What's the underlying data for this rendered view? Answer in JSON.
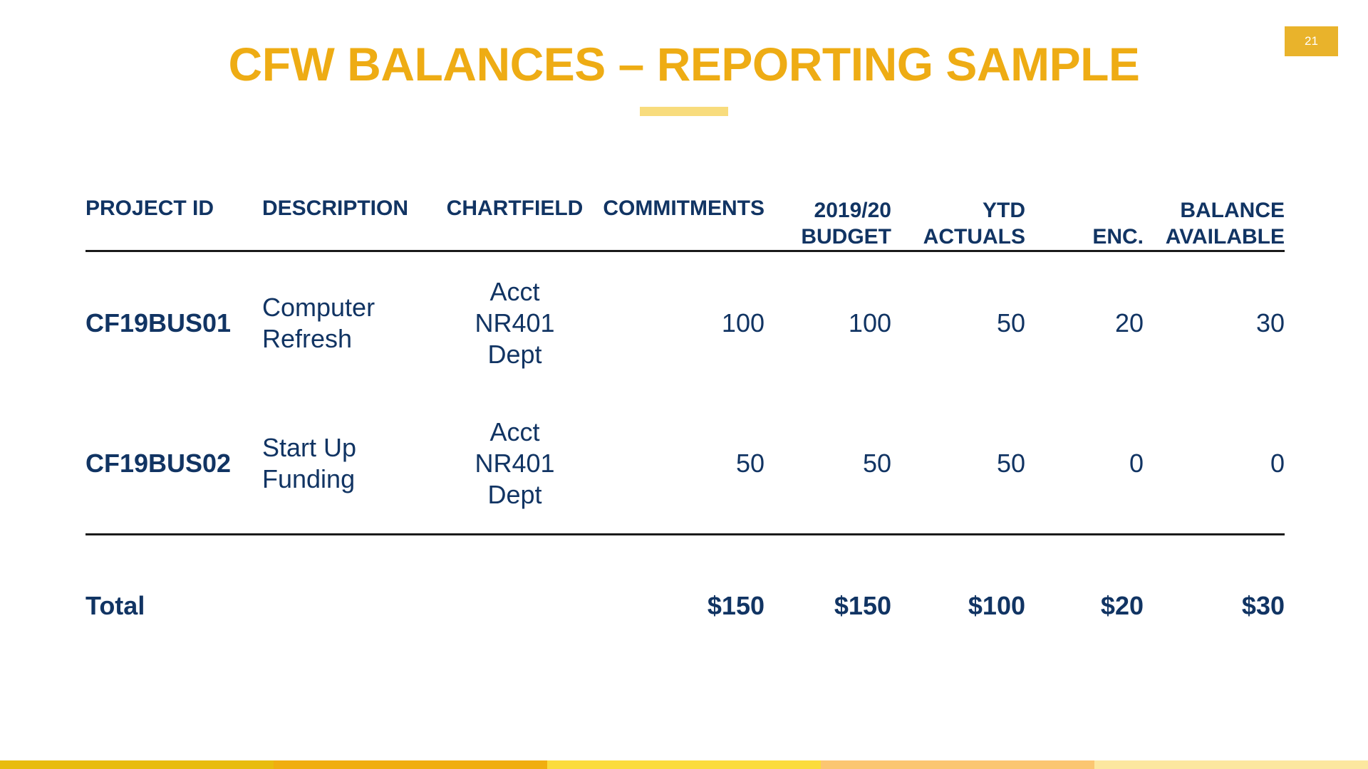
{
  "page": {
    "number": "21"
  },
  "title": {
    "text": "CFW BALANCES – REPORTING SAMPLE"
  },
  "table": {
    "header": {
      "project_id": "PROJECT ID",
      "description": "DESCRIPTION",
      "chartfield": "CHARTFIELD",
      "commitments": "COMMITMENTS",
      "budget": [
        "2019/20",
        "BUDGET"
      ],
      "ytd": [
        "YTD",
        "ACTUALS"
      ],
      "enc": "ENC.",
      "balance": [
        "BALANCE",
        "AVAILABLE"
      ]
    },
    "rows": [
      {
        "project_id": "CF19BUS01",
        "description": [
          "Computer",
          "Refresh"
        ],
        "chartfield": [
          "Acct",
          "NR401",
          "Dept"
        ],
        "commitments": "100",
        "budget": "100",
        "ytd": "50",
        "enc": "20",
        "available": "30"
      },
      {
        "project_id": "CF19BUS02",
        "description": [
          "Start Up",
          "Funding"
        ],
        "chartfield": [
          "Acct",
          "NR401",
          "Dept"
        ],
        "commitments": "50",
        "budget": "50",
        "ytd": "50",
        "enc": "0",
        "available": "0"
      }
    ],
    "total": {
      "label": "Total",
      "commitments": "$150",
      "budget": "$150",
      "ytd": "$100",
      "enc": "$20",
      "available": "$30"
    }
  },
  "colors": {
    "brand_gold": "#EEAC14",
    "accent_bar": "#F8DC7D",
    "badge_gold": "#E9B32B",
    "text_navy": "#113463",
    "rule_dark": "#1a1a1a"
  },
  "footer": {
    "segments": [
      "#E8BC0D",
      "#F0AE10",
      "#FBDC3C",
      "#FBC671",
      "#FCE79F"
    ]
  }
}
